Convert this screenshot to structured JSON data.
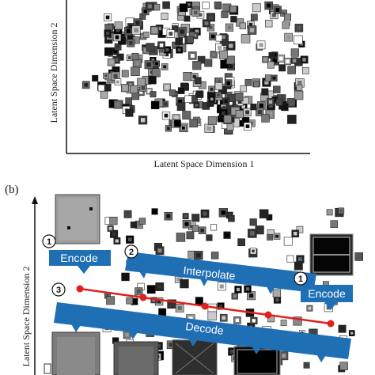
{
  "panel_a": {
    "x_axis_label": "Latent Space Dimension 1",
    "y_axis_label": "Latent Space Dimension 2"
  },
  "panel_b": {
    "panel_label": "(b)",
    "y_axis_label": "Latent Space Dimension 2",
    "steps": [
      {
        "number": "1",
        "label": "Encode"
      },
      {
        "number": "2",
        "label": "Interpolate"
      },
      {
        "number": "1",
        "label": "Encode"
      },
      {
        "number": "3",
        "label": "Decode"
      }
    ]
  },
  "colors": {
    "arrow_blue": "#1f6fb5",
    "interpolation_red": "#e0201c",
    "axis": "#111111"
  }
}
